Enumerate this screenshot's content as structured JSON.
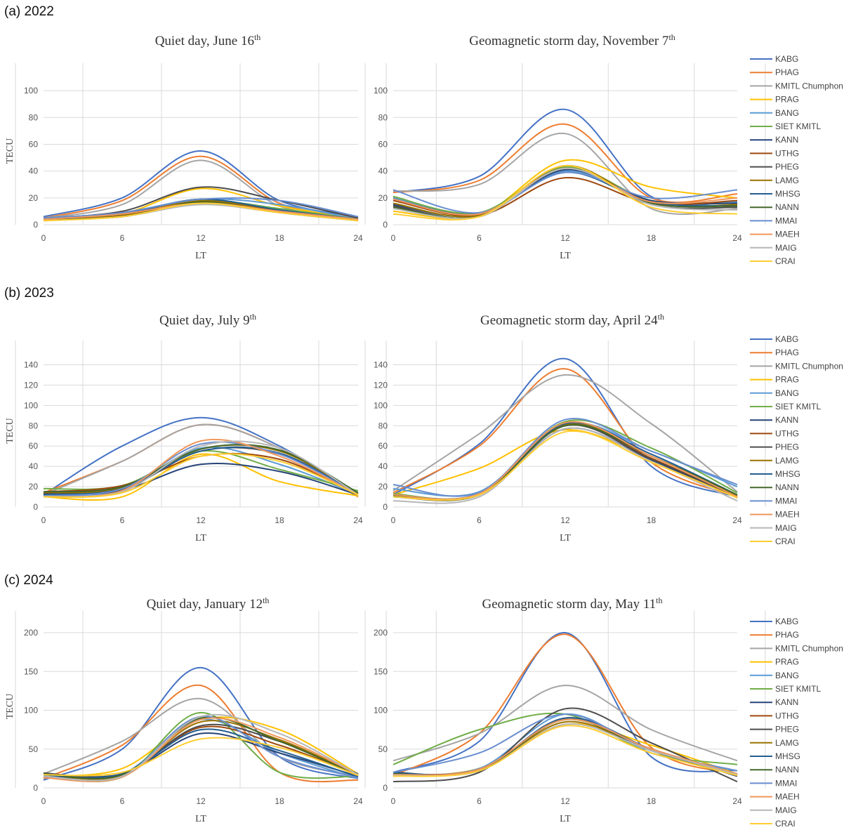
{
  "sections": [
    "(a) 2022",
    "(b) 2023",
    "(c) 2024"
  ],
  "stations": [
    "KABG",
    "PHAG",
    "KMITL Chumphon",
    "PRAG",
    "BANG",
    "SIET KMITL",
    "KANN",
    "UTHG",
    "PHEG",
    "LAMG",
    "MHSG",
    "NANN",
    "MMAI",
    "MAEH",
    "MAIG",
    "CRAI"
  ],
  "colors": [
    "#4472c4",
    "#ed7d31",
    "#a5a5a5",
    "#ffc000",
    "#5b9bd5",
    "#70ad47",
    "#264478",
    "#9e480e",
    "#4d4d4d",
    "#997300",
    "#255e91",
    "#43682b",
    "#698ed0",
    "#f1975a",
    "#b7b7b7",
    "#ffcd33"
  ],
  "chart_data": [
    {
      "type": "line",
      "title": "Quiet day, June 16",
      "title_sup": "th",
      "xlabel": "LT",
      "ylabel": "TECU",
      "xlim": [
        0,
        24
      ],
      "ylim": [
        0,
        110
      ],
      "xticks": [
        0,
        6,
        12,
        18,
        24
      ],
      "yticks": [
        0,
        20,
        40,
        60,
        80,
        100
      ],
      "x": [
        0,
        6,
        12,
        18,
        24
      ],
      "series": [
        {
          "name": "KABG",
          "values": [
            6,
            20,
            55,
            18,
            6
          ]
        },
        {
          "name": "PHAG",
          "values": [
            5,
            18,
            51,
            16,
            5
          ]
        },
        {
          "name": "KMITL Chumphon",
          "values": [
            5,
            15,
            48,
            14,
            5
          ]
        },
        {
          "name": "PRAG",
          "values": [
            3,
            8,
            27,
            14,
            4
          ]
        },
        {
          "name": "BANG",
          "values": [
            4,
            9,
            19,
            15,
            4
          ]
        },
        {
          "name": "SIET KMITL",
          "values": [
            4,
            7,
            18,
            12,
            4
          ]
        },
        {
          "name": "KANN",
          "values": [
            4,
            7,
            19,
            10,
            4
          ]
        },
        {
          "name": "UTHG",
          "values": [
            4,
            6,
            17,
            10,
            3
          ]
        },
        {
          "name": "PHEG",
          "values": [
            5,
            10,
            28,
            18,
            5
          ]
        },
        {
          "name": "LAMG",
          "values": [
            4,
            7,
            18,
            10,
            4
          ]
        },
        {
          "name": "MHSG",
          "values": [
            5,
            8,
            19,
            11,
            4
          ]
        },
        {
          "name": "NANN",
          "values": [
            4,
            6,
            17,
            9,
            3
          ]
        },
        {
          "name": "MMAI",
          "values": [
            5,
            9,
            19,
            18,
            6
          ]
        },
        {
          "name": "MAEH",
          "values": [
            4,
            8,
            16,
            10,
            4
          ]
        },
        {
          "name": "MAIG",
          "values": [
            3,
            6,
            15,
            9,
            3
          ]
        },
        {
          "name": "CRAI",
          "values": [
            3,
            6,
            16,
            9,
            3
          ]
        }
      ]
    },
    {
      "type": "line",
      "title": "Geomagnetic storm day, November 7",
      "title_sup": "th",
      "xlabel": "LT",
      "ylabel": "",
      "xlim": [
        0,
        24
      ],
      "ylim": [
        0,
        110
      ],
      "xticks": [
        0,
        6,
        12,
        18,
        24
      ],
      "yticks": [
        0,
        20,
        40,
        60,
        80,
        100
      ],
      "x": [
        0,
        6,
        12,
        18,
        24
      ],
      "series": [
        {
          "name": "KABG",
          "values": [
            24,
            36,
            86,
            21,
            17
          ]
        },
        {
          "name": "PHAG",
          "values": [
            24,
            33,
            75,
            20,
            23
          ]
        },
        {
          "name": "KMITL Chumphon",
          "values": [
            25,
            30,
            68,
            12,
            12
          ]
        },
        {
          "name": "PRAG",
          "values": [
            10,
            7,
            48,
            28,
            20
          ]
        },
        {
          "name": "BANG",
          "values": [
            20,
            8,
            40,
            18,
            17
          ]
        },
        {
          "name": "SIET KMITL",
          "values": [
            21,
            9,
            43,
            18,
            16
          ]
        },
        {
          "name": "KANN",
          "values": [
            15,
            7,
            41,
            18,
            16
          ]
        },
        {
          "name": "UTHG",
          "values": [
            18,
            7,
            35,
            16,
            18
          ]
        },
        {
          "name": "PHEG",
          "values": [
            14,
            6,
            44,
            15,
            13
          ]
        },
        {
          "name": "LAMG",
          "values": [
            16,
            7,
            44,
            16,
            15
          ]
        },
        {
          "name": "MHSG",
          "values": [
            19,
            8,
            39,
            17,
            14
          ]
        },
        {
          "name": "NANN",
          "values": [
            13,
            6,
            42,
            16,
            14
          ]
        },
        {
          "name": "MMAI",
          "values": [
            26,
            9,
            39,
            20,
            26
          ]
        },
        {
          "name": "MAEH",
          "values": [
            19,
            8,
            42,
            17,
            20
          ]
        },
        {
          "name": "MAIG",
          "values": [
            12,
            6,
            42,
            15,
            11
          ]
        },
        {
          "name": "CRAI",
          "values": [
            8,
            6,
            44,
            13,
            8
          ]
        }
      ]
    },
    {
      "type": "line",
      "title": "Quiet day, July 9",
      "title_sup": "th",
      "xlabel": "LT",
      "ylabel": "TECU",
      "xlim": [
        0,
        24
      ],
      "ylim": [
        0,
        150
      ],
      "xticks": [
        0,
        6,
        12,
        18,
        24
      ],
      "yticks": [
        0,
        20,
        40,
        60,
        80,
        100,
        120,
        140
      ],
      "x": [
        0,
        6,
        12,
        18,
        24
      ],
      "series": [
        {
          "name": "KABG",
          "values": [
            12,
            60,
            88,
            60,
            12
          ]
        },
        {
          "name": "PHAG",
          "values": [
            14,
            45,
            81,
            58,
            10
          ]
        },
        {
          "name": "KMITL Chumphon",
          "values": [
            12,
            45,
            81,
            58,
            12
          ]
        },
        {
          "name": "PRAG",
          "values": [
            10,
            10,
            52,
            25,
            11
          ]
        },
        {
          "name": "BANG",
          "values": [
            11,
            17,
            58,
            42,
            12
          ]
        },
        {
          "name": "SIET KMITL",
          "values": [
            18,
            21,
            55,
            37,
            16
          ]
        },
        {
          "name": "KANN",
          "values": [
            13,
            17,
            42,
            35,
            12
          ]
        },
        {
          "name": "UTHG",
          "values": [
            15,
            21,
            50,
            47,
            12
          ]
        },
        {
          "name": "PHEG",
          "values": [
            12,
            17,
            55,
            52,
            12
          ]
        },
        {
          "name": "LAMG",
          "values": [
            14,
            19,
            57,
            55,
            13
          ]
        },
        {
          "name": "MHSG",
          "values": [
            12,
            18,
            55,
            53,
            12
          ]
        },
        {
          "name": "NANN",
          "values": [
            15,
            20,
            57,
            56,
            14
          ]
        },
        {
          "name": "MMAI",
          "values": [
            11,
            18,
            62,
            52,
            12
          ]
        },
        {
          "name": "MAEH",
          "values": [
            10,
            16,
            65,
            50,
            12
          ]
        },
        {
          "name": "MAIG",
          "values": [
            10,
            15,
            60,
            58,
            12
          ]
        },
        {
          "name": "CRAI",
          "values": [
            10,
            14,
            50,
            45,
            12
          ]
        }
      ]
    },
    {
      "type": "line",
      "title": "Geomagnetic storm day, April 24",
      "title_sup": "th",
      "xlabel": "LT",
      "ylabel": "",
      "xlim": [
        0,
        24
      ],
      "ylim": [
        0,
        150
      ],
      "xticks": [
        0,
        6,
        12,
        18,
        24
      ],
      "yticks": [
        0,
        20,
        40,
        60,
        80,
        100,
        120,
        140
      ],
      "x": [
        0,
        6,
        12,
        18,
        24
      ],
      "series": [
        {
          "name": "KABG",
          "values": [
            12,
            62,
            146,
            40,
            10
          ]
        },
        {
          "name": "PHAG",
          "values": [
            14,
            60,
            136,
            44,
            10
          ]
        },
        {
          "name": "KMITL Chumphon",
          "values": [
            16,
            72,
            130,
            82,
            15
          ]
        },
        {
          "name": "PRAG",
          "values": [
            12,
            38,
            76,
            47,
            10
          ]
        },
        {
          "name": "BANG",
          "values": [
            18,
            15,
            82,
            55,
            20
          ]
        },
        {
          "name": "SIET KMITL",
          "values": [
            13,
            13,
            84,
            58,
            14
          ]
        },
        {
          "name": "KANN",
          "values": [
            10,
            12,
            77,
            46,
            9
          ]
        },
        {
          "name": "UTHG",
          "values": [
            11,
            13,
            80,
            48,
            9
          ]
        },
        {
          "name": "PHEG",
          "values": [
            10,
            12,
            80,
            47,
            10
          ]
        },
        {
          "name": "LAMG",
          "values": [
            11,
            13,
            81,
            50,
            11
          ]
        },
        {
          "name": "MHSG",
          "values": [
            12,
            13,
            82,
            52,
            12
          ]
        },
        {
          "name": "NANN",
          "values": [
            11,
            12,
            80,
            50,
            12
          ]
        },
        {
          "name": "MMAI",
          "values": [
            22,
            14,
            86,
            55,
            22
          ]
        },
        {
          "name": "MAEH",
          "values": [
            12,
            13,
            83,
            50,
            10
          ]
        },
        {
          "name": "MAIG",
          "values": [
            6,
            10,
            77,
            45,
            6
          ]
        },
        {
          "name": "CRAI",
          "values": [
            10,
            12,
            74,
            44,
            9
          ]
        }
      ]
    },
    {
      "type": "line",
      "title": "Quiet day, January 12",
      "title_sup": "th",
      "xlabel": "LT",
      "ylabel": "TECU",
      "xlim": [
        0,
        24
      ],
      "ylim": [
        0,
        210
      ],
      "xticks": [
        0,
        6,
        12,
        18,
        24
      ],
      "yticks": [
        0,
        50,
        100,
        150,
        200
      ],
      "x": [
        0,
        6,
        12,
        18,
        24
      ],
      "series": [
        {
          "name": "KABG",
          "values": [
            10,
            50,
            155,
            40,
            12
          ]
        },
        {
          "name": "PHAG",
          "values": [
            12,
            55,
            132,
            20,
            10
          ]
        },
        {
          "name": "KMITL Chumphon",
          "values": [
            18,
            60,
            115,
            40,
            15
          ]
        },
        {
          "name": "PRAG",
          "values": [
            15,
            25,
            88,
            75,
            18
          ]
        },
        {
          "name": "BANG",
          "values": [
            15,
            18,
            88,
            45,
            12
          ]
        },
        {
          "name": "SIET KMITL",
          "values": [
            15,
            14,
            97,
            20,
            15
          ]
        },
        {
          "name": "KANN",
          "values": [
            18,
            18,
            70,
            45,
            15
          ]
        },
        {
          "name": "UTHG",
          "values": [
            17,
            17,
            78,
            55,
            17
          ]
        },
        {
          "name": "PHEG",
          "values": [
            19,
            18,
            80,
            60,
            18
          ]
        },
        {
          "name": "LAMG",
          "values": [
            17,
            16,
            85,
            62,
            16
          ]
        },
        {
          "name": "MHSG",
          "values": [
            16,
            18,
            75,
            48,
            14
          ]
        },
        {
          "name": "NANN",
          "values": [
            18,
            17,
            90,
            60,
            16
          ]
        },
        {
          "name": "MMAI",
          "values": [
            14,
            15,
            92,
            40,
            13
          ]
        },
        {
          "name": "MAEH",
          "values": [
            13,
            14,
            88,
            65,
            17
          ]
        },
        {
          "name": "MAIG",
          "values": [
            15,
            15,
            92,
            70,
            17
          ]
        },
        {
          "name": "CRAI",
          "values": [
            17,
            20,
            63,
            52,
            16
          ]
        }
      ]
    },
    {
      "type": "line",
      "title": "Geomagnetic storm day, May 11",
      "title_sup": "th",
      "xlabel": "LT",
      "ylabel": "",
      "xlim": [
        0,
        24
      ],
      "ylim": [
        0,
        210
      ],
      "xticks": [
        0,
        6,
        12,
        18,
        24
      ],
      "yticks": [
        0,
        50,
        100,
        150,
        200
      ],
      "x": [
        0,
        6,
        12,
        18,
        24
      ],
      "series": [
        {
          "name": "KABG",
          "values": [
            20,
            60,
            200,
            40,
            22
          ]
        },
        {
          "name": "PHAG",
          "values": [
            16,
            70,
            198,
            52,
            18
          ]
        },
        {
          "name": "KMITL Chumphon",
          "values": [
            35,
            70,
            132,
            75,
            35
          ]
        },
        {
          "name": "PRAG",
          "values": [
            15,
            25,
            82,
            55,
            18
          ]
        },
        {
          "name": "BANG",
          "values": [
            18,
            25,
            95,
            45,
            22
          ]
        },
        {
          "name": "SIET KMITL",
          "values": [
            30,
            75,
            95,
            45,
            30
          ]
        },
        {
          "name": "KANN",
          "values": [
            20,
            22,
            90,
            50,
            15
          ]
        },
        {
          "name": "UTHG",
          "values": [
            18,
            24,
            88,
            50,
            16
          ]
        },
        {
          "name": "PHEG",
          "values": [
            8,
            20,
            102,
            58,
            8
          ]
        },
        {
          "name": "LAMG",
          "values": [
            17,
            22,
            85,
            48,
            16
          ]
        },
        {
          "name": "MHSG",
          "values": [
            19,
            23,
            90,
            50,
            18
          ]
        },
        {
          "name": "NANN",
          "values": [
            18,
            22,
            88,
            48,
            17
          ]
        },
        {
          "name": "MMAI",
          "values": [
            20,
            45,
            95,
            48,
            22
          ]
        },
        {
          "name": "MAEH",
          "values": [
            17,
            24,
            88,
            50,
            18
          ]
        },
        {
          "name": "MAIG",
          "values": [
            16,
            22,
            82,
            48,
            17
          ]
        },
        {
          "name": "CRAI",
          "values": [
            15,
            22,
            80,
            45,
            16
          ]
        }
      ]
    }
  ]
}
